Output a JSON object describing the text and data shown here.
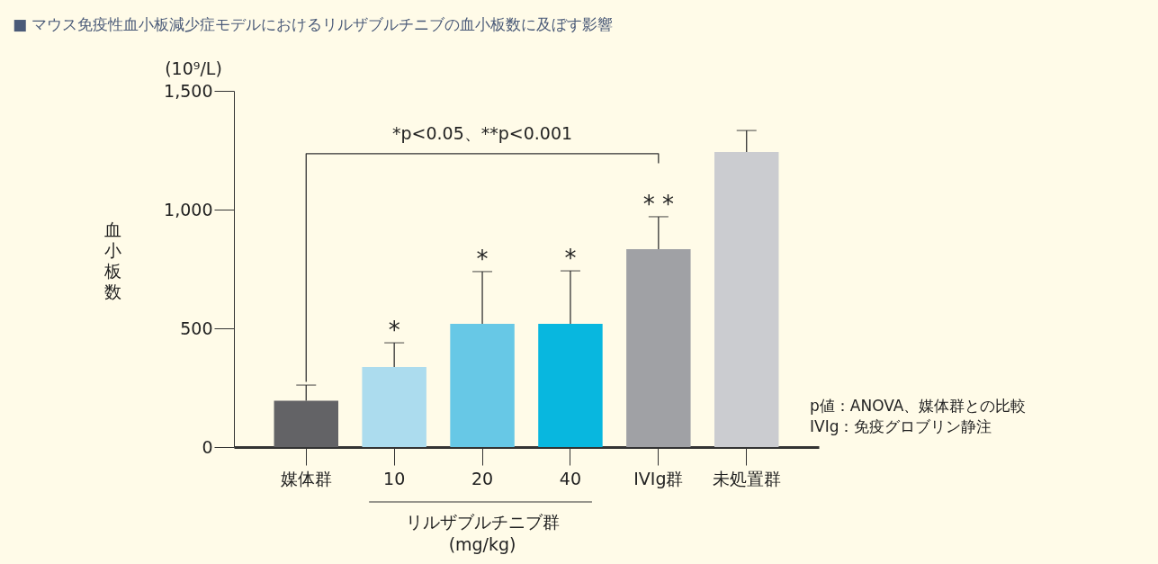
{
  "chart_data": {
    "type": "bar",
    "title": "■ マウス免疫性血小板減少症モデルにおけるリルザブルチニブの血小板数に及ぼす影響",
    "ylabel": "血小板数",
    "categories": [
      "媒体群",
      "10",
      "20",
      "40",
      "IVIg群",
      "未処置群"
    ],
    "values": [
      195,
      337,
      519,
      519,
      833,
      1242
    ],
    "colors": [
      "#636366",
      "#acdcee",
      "#67c8e6",
      "#08b7df",
      "#a0a1a5",
      "#cbccd0"
    ],
    "errors": [
      [
        195,
        261
      ],
      [
        337,
        439
      ],
      [
        519,
        739
      ],
      [
        519,
        742
      ],
      [
        833,
        970
      ],
      [
        1242,
        1333
      ]
    ],
    "ylim": [
      0,
      1500
    ],
    "yticks": [
      0,
      {
        "value": 500,
        "label": "500"
      },
      {
        "value": 1000,
        "label": "1,000"
      },
      {
        "value": 1500,
        "label": "1,500"
      }
    ],
    "grid": false,
    "annotations": [
      "(10⁹/L)",
      "*p<0.05、**p<0.001",
      {
        "text": "*",
        "x": "10",
        "y": 439
      },
      {
        "text": "*",
        "x": "20",
        "y": 739
      },
      {
        "text": "*",
        "x": "40",
        "y": 742
      },
      {
        "text": "* *",
        "x": "IVIg群",
        "y": 970
      },
      "リルザブルチニブ群\n(mg/kg)",
      "p値：ANOVA、媒体群との比較",
      "IVIg：免疫グロブリン静注"
    ]
  }
}
